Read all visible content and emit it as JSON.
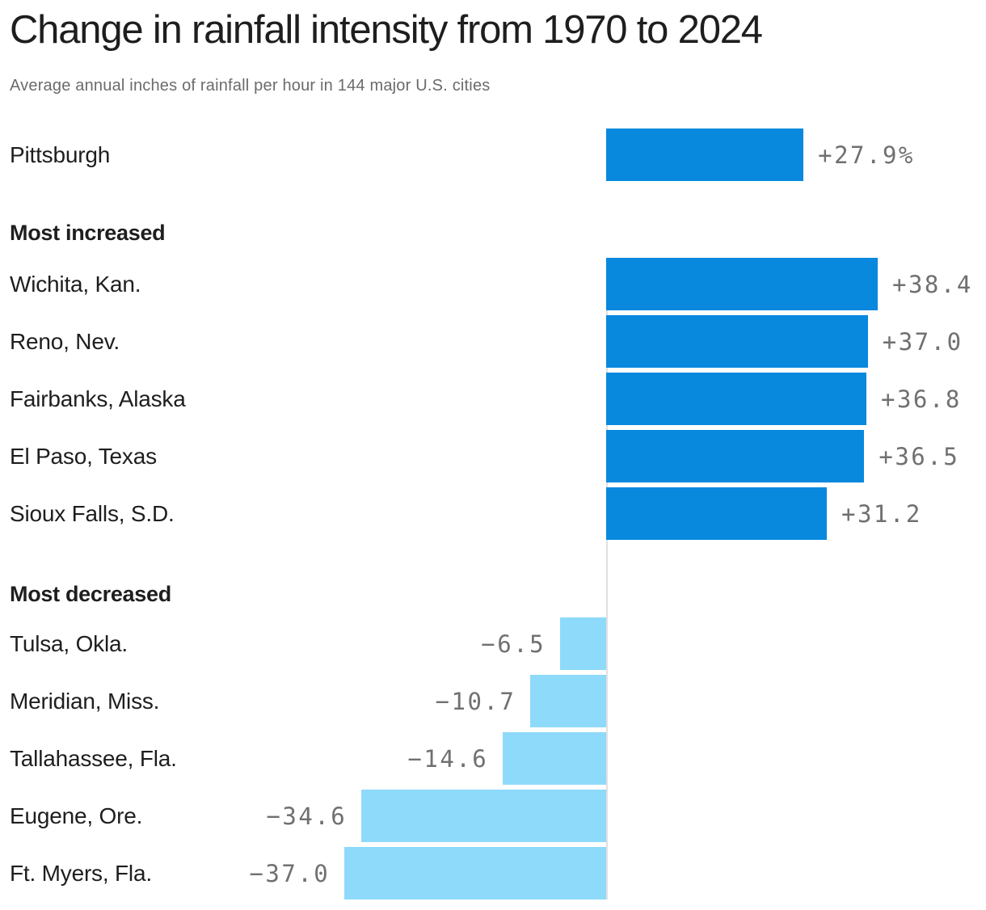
{
  "chart_data": {
    "type": "bar",
    "orientation": "horizontal",
    "title": "Change in rainfall intensity from 1970 to 2024",
    "subtitle": "Average annual inches of rainfall per hour in 144 major U.S. cities",
    "value_unit": "percent change",
    "grid": false,
    "legend": false,
    "zero_baseline": true,
    "xlim": [
      -40,
      45
    ],
    "highlight": {
      "label": "Pittsburgh",
      "value": 27.9,
      "display": "+27.9%"
    },
    "sections": [
      {
        "header": "Most increased",
        "rows": [
          {
            "label": "Wichita, Kan.",
            "value": 38.4,
            "display": "+38.4"
          },
          {
            "label": "Reno, Nev.",
            "value": 37.0,
            "display": "+37.0"
          },
          {
            "label": "Fairbanks, Alaska",
            "value": 36.8,
            "display": "+36.8"
          },
          {
            "label": "El Paso, Texas",
            "value": 36.5,
            "display": "+36.5"
          },
          {
            "label": "Sioux Falls, S.D.",
            "value": 31.2,
            "display": "+31.2"
          }
        ]
      },
      {
        "header": "Most decreased",
        "rows": [
          {
            "label": "Tulsa, Okla.",
            "value": -6.5,
            "display": "−6.5"
          },
          {
            "label": "Meridian, Miss.",
            "value": -10.7,
            "display": "−10.7"
          },
          {
            "label": "Tallahassee, Fla.",
            "value": -14.6,
            "display": "−14.6"
          },
          {
            "label": "Eugene, Ore.",
            "value": -34.6,
            "display": "−34.6"
          },
          {
            "label": "Ft. Myers, Fla.",
            "value": -37.0,
            "display": "−37.0"
          }
        ]
      }
    ],
    "colors": {
      "positive_bar": "#0889de",
      "negative_bar": "#8edafa",
      "value_text": "#707070",
      "heading_text": "#1e1e1e",
      "subtitle_text": "#6b6b6b",
      "axis_line": "#e0e0e0",
      "background": "#ffffff"
    }
  }
}
